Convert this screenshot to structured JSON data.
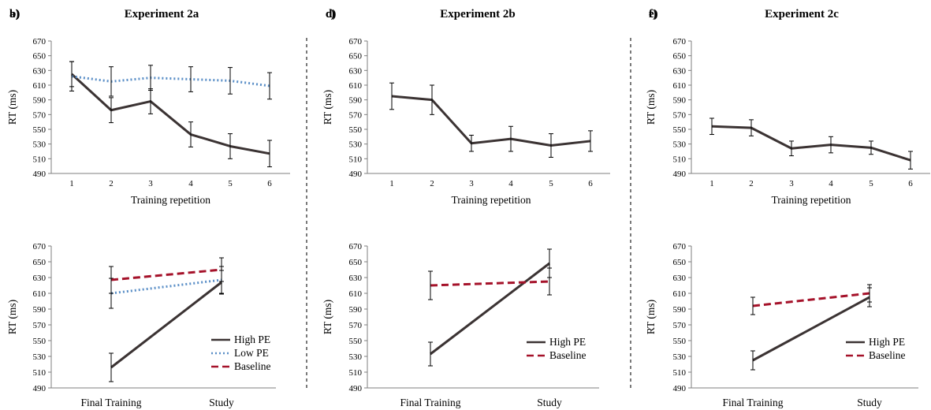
{
  "colors": {
    "high": "#3b3333",
    "low": "#5b8fc7",
    "baseline": "#a5122a",
    "axis": "#7f7f7f",
    "divider": "#222222"
  },
  "chart_data": [
    {
      "panel": "a)",
      "title": "Experiment 2a",
      "type": "line",
      "xlabel": "Training repetition",
      "ylabel": "RT (ms)",
      "ylim": [
        490,
        670
      ],
      "yticks": [
        "490",
        "510",
        "530",
        "550",
        "570",
        "590",
        "610",
        "630",
        "650",
        "670"
      ],
      "categories": [
        "1",
        "2",
        "3",
        "4",
        "5",
        "6"
      ],
      "series": [
        {
          "name": "High PE",
          "style": "solid",
          "values": [
            625,
            576,
            588,
            543,
            527,
            517
          ],
          "errors": [
            17,
            17,
            17,
            17,
            17,
            18
          ]
        },
        {
          "name": "Low PE",
          "style": "dotted",
          "values": [
            622,
            615,
            620,
            618,
            616,
            609
          ],
          "errors": [
            20,
            20,
            17,
            17,
            18,
            18
          ]
        }
      ],
      "legend": []
    },
    {
      "panel": "c)",
      "title": "Experiment 2b",
      "type": "line",
      "xlabel": "Training repetition",
      "ylabel": "RT (ms)",
      "ylim": [
        490,
        670
      ],
      "yticks": [
        "490",
        "510",
        "530",
        "550",
        "570",
        "590",
        "610",
        "630",
        "650",
        "670"
      ],
      "categories": [
        "1",
        "2",
        "3",
        "4",
        "5",
        "6"
      ],
      "series": [
        {
          "name": "High PE",
          "style": "solid",
          "values": [
            595,
            590,
            531,
            537,
            528,
            534
          ],
          "errors": [
            18,
            20,
            11,
            17,
            16,
            14
          ]
        }
      ],
      "legend": []
    },
    {
      "panel": "e)",
      "title": "Experiment 2c",
      "type": "line",
      "xlabel": "Training repetition",
      "ylabel": "RT (ms)",
      "ylim": [
        490,
        670
      ],
      "yticks": [
        "490",
        "510",
        "530",
        "550",
        "570",
        "590",
        "610",
        "630",
        "650",
        "670"
      ],
      "categories": [
        "1",
        "2",
        "3",
        "4",
        "5",
        "6"
      ],
      "series": [
        {
          "name": "High PE",
          "style": "solid",
          "values": [
            554,
            552,
            524,
            529,
            525,
            508
          ],
          "errors": [
            11,
            11,
            10,
            11,
            9,
            12
          ]
        }
      ],
      "legend": []
    },
    {
      "panel": "b)",
      "title": "",
      "type": "line",
      "xlabel": "",
      "ylabel": "RT (ms)",
      "ylim": [
        490,
        670
      ],
      "yticks": [
        "490",
        "510",
        "530",
        "550",
        "570",
        "590",
        "610",
        "630",
        "650",
        "670"
      ],
      "categories": [
        "Final Training",
        "Study"
      ],
      "series": [
        {
          "name": "High PE",
          "style": "solid",
          "values": [
            516,
            624
          ],
          "errors": [
            18,
            15
          ]
        },
        {
          "name": "Low PE",
          "style": "dotted",
          "values": [
            610,
            627
          ],
          "errors": [
            19,
            17
          ]
        },
        {
          "name": "Baseline",
          "style": "dashed",
          "values": [
            627,
            640
          ],
          "errors": [
            17,
            15
          ]
        }
      ],
      "legend": [
        "High PE",
        "Low PE",
        "Baseline"
      ]
    },
    {
      "panel": "d)",
      "title": "",
      "type": "line",
      "xlabel": "",
      "ylabel": "RT (ms)",
      "ylim": [
        490,
        670
      ],
      "yticks": [
        "490",
        "510",
        "530",
        "550",
        "570",
        "590",
        "610",
        "630",
        "650",
        "670"
      ],
      "categories": [
        "Final Training",
        "Study"
      ],
      "series": [
        {
          "name": "High PE",
          "style": "solid",
          "values": [
            533,
            648
          ],
          "errors": [
            15,
            18
          ]
        },
        {
          "name": "Baseline",
          "style": "dashed",
          "values": [
            620,
            625
          ],
          "errors": [
            18,
            17
          ]
        }
      ],
      "legend": [
        "High PE",
        "Baseline"
      ]
    },
    {
      "panel": "f)",
      "title": "",
      "type": "line",
      "xlabel": "",
      "ylabel": "RT (ms)",
      "ylim": [
        490,
        670
      ],
      "yticks": [
        "490",
        "510",
        "530",
        "550",
        "570",
        "590",
        "610",
        "630",
        "650",
        "670"
      ],
      "categories": [
        "Final Training",
        "Study"
      ],
      "series": [
        {
          "name": "High PE",
          "style": "solid",
          "values": [
            525,
            605
          ],
          "errors": [
            12,
            12
          ]
        },
        {
          "name": "Baseline",
          "style": "dashed",
          "values": [
            594,
            610
          ],
          "errors": [
            11,
            11
          ]
        }
      ],
      "legend": [
        "High PE",
        "Baseline"
      ]
    }
  ]
}
